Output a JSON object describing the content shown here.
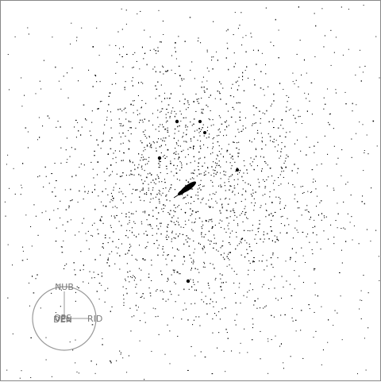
{
  "scene": {
    "background": "#ffffff",
    "star_color": "#000000",
    "seed": 7,
    "compass_color": "#9a9a9a"
  },
  "compass": {
    "up_label": "NUB",
    "right_label": "RID",
    "center_label_1": "DEN",
    "center_label_2": "VEL",
    "center_label_3": "OPS"
  }
}
